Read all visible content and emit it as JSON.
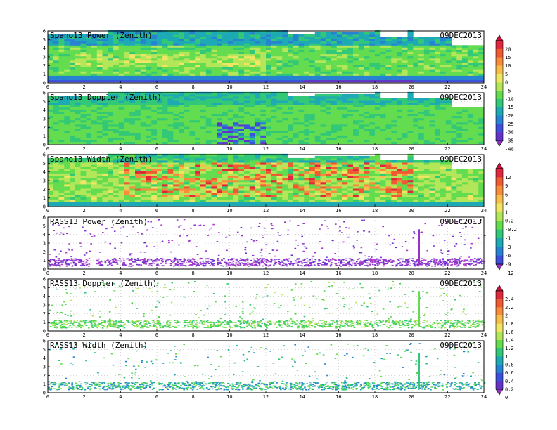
{
  "chart_data": {
    "type": "heatmap",
    "xlim": [
      0,
      24
    ],
    "ylim": [
      0,
      6
    ],
    "x_ticks": [
      "0",
      "2",
      "4",
      "6",
      "8",
      "10",
      "12",
      "14",
      "16",
      "18",
      "20",
      "22",
      "24"
    ],
    "y_ticks": [
      "0",
      "1",
      "2",
      "3",
      "4",
      "5",
      "6"
    ],
    "grid": true,
    "panels": [
      {
        "title": "Spano13 Power (Zenith)",
        "date": "09DEC2013",
        "kind": "power"
      },
      {
        "title": "Spano13 Doppler (Zenith)",
        "date": "09DEC2013",
        "kind": "doppler"
      },
      {
        "title": "Spano13 Width (Zenith)",
        "date": "09DEC2013",
        "kind": "width"
      },
      {
        "title": "RASS13 Power (Zenith)",
        "date": "09DEC2013",
        "kind": "rass_power"
      },
      {
        "title": "RASS13 Doppler (Zenith)",
        "date": "09DEC2013",
        "kind": "rass_doppler"
      },
      {
        "title": "RASS13 Width (Zenith)",
        "date": "09DEC2013",
        "kind": "rass_width"
      }
    ],
    "colorbars": [
      {
        "labels": [
          "20",
          "15",
          "10",
          "5",
          "0",
          "-5",
          "-10",
          "-15",
          "-20",
          "-25",
          "-30",
          "-35",
          "-40"
        ],
        "colors": [
          "#c8143c",
          "#e0283c",
          "#f05a32",
          "#f88c3c",
          "#f8be4c",
          "#f0e664",
          "#b4e65a",
          "#64dc50",
          "#32c878",
          "#1eaab4",
          "#2882d2",
          "#3c50dc",
          "#6432c8",
          "#9632c8"
        ]
      },
      {
        "labels": [
          "12",
          "9",
          "6",
          "3",
          "1",
          "0.2",
          "-0.2",
          "-1",
          "-3",
          "-6",
          "-9",
          "-12"
        ],
        "colors": [
          "#c8143c",
          "#e0283c",
          "#f05a32",
          "#f88c3c",
          "#f8be4c",
          "#f0e664",
          "#b4e65a",
          "#64dc50",
          "#32c878",
          "#1eaab4",
          "#2882d2",
          "#3c50dc",
          "#9632c8"
        ]
      },
      {
        "labels": [
          "2.4",
          "2.2",
          "2",
          "1.8",
          "1.6",
          "1.4",
          "1.2",
          "1",
          "0.8",
          "0.6",
          "0.4",
          "0.2",
          "0"
        ],
        "colors": [
          "#c8143c",
          "#e0283c",
          "#f05a32",
          "#f88c3c",
          "#f8be4c",
          "#f0e664",
          "#b4e65a",
          "#64dc50",
          "#32c878",
          "#1eaab4",
          "#2882d2",
          "#3c50dc",
          "#6432c8",
          "#9632c8"
        ]
      }
    ]
  }
}
